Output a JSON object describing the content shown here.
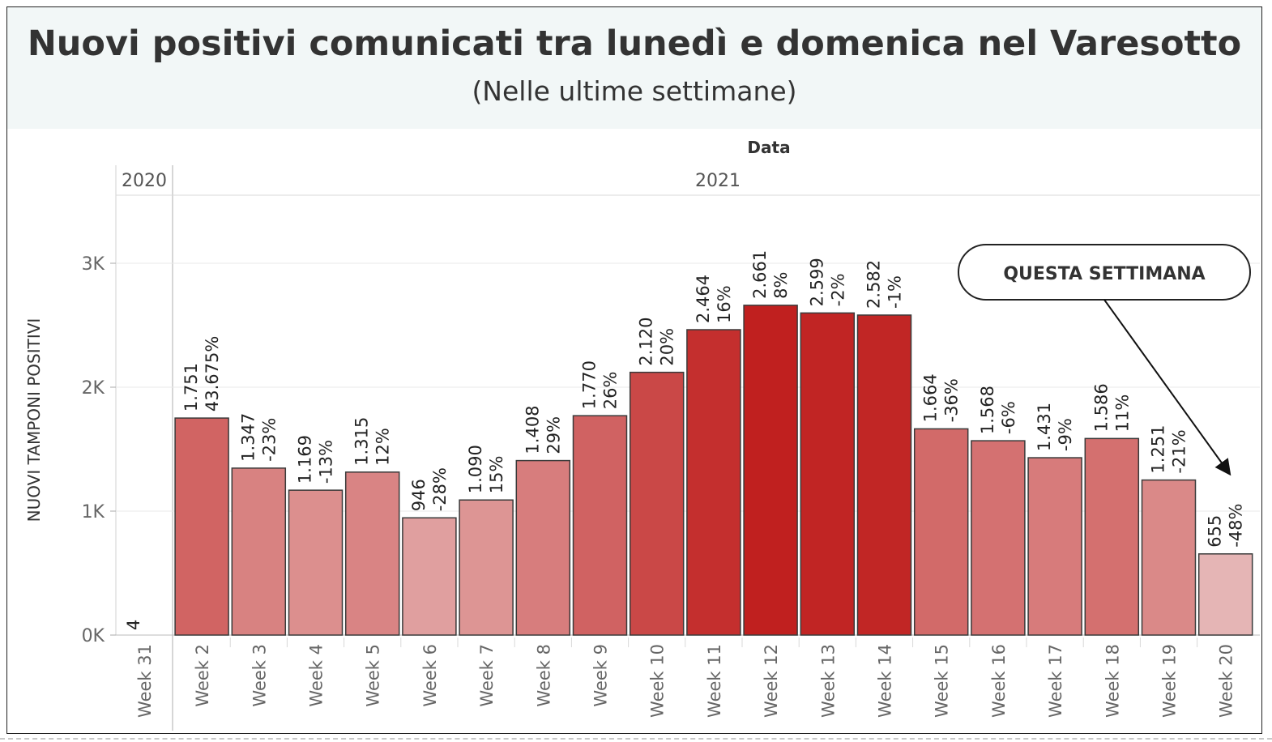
{
  "title": "Nuovi positivi comunicati tra lunedì e domenica nel Varesotto",
  "subtitle": "(Nelle ultime settimane)",
  "chart_data": {
    "type": "bar",
    "title": "Nuovi positivi comunicati tra lunedì e domenica nel Varesotto",
    "subtitle": "(Nelle ultime settimane)",
    "xlabel": "Data",
    "ylabel": "NUOVI TAMPONI POSITIVI",
    "ylim": [
      0,
      3500
    ],
    "yticks": [
      0,
      1000,
      2000,
      3000
    ],
    "ytick_labels": [
      "0K",
      "1K",
      "2K",
      "3K"
    ],
    "year_groups": [
      {
        "label": "2020",
        "categories": [
          "Week 31"
        ]
      },
      {
        "label": "2021",
        "categories": [
          "Week 2",
          "Week 3",
          "Week 4",
          "Week 5",
          "Week 6",
          "Week 7",
          "Week 8",
          "Week 9",
          "Week 10",
          "Week 11",
          "Week 12",
          "Week 13",
          "Week 14",
          "Week 15",
          "Week 16",
          "Week 17",
          "Week 18",
          "Week 19",
          "Week 20"
        ]
      }
    ],
    "categories": [
      "Week 31",
      "Week 2",
      "Week 3",
      "Week 4",
      "Week 5",
      "Week 6",
      "Week 7",
      "Week 8",
      "Week 9",
      "Week 10",
      "Week 11",
      "Week 12",
      "Week 13",
      "Week 14",
      "Week 15",
      "Week 16",
      "Week 17",
      "Week 18",
      "Week 19",
      "Week 20"
    ],
    "values": [
      4,
      1751,
      1347,
      1169,
      1315,
      946,
      1090,
      1408,
      1770,
      2120,
      2464,
      2661,
      2599,
      2582,
      1664,
      1568,
      1431,
      1586,
      1251,
      655
    ],
    "value_labels": [
      "4",
      "1.751",
      "1.347",
      "1.169",
      "1.315",
      "946",
      "1.090",
      "1.408",
      "1.770",
      "2.120",
      "2.464",
      "2.661",
      "2.599",
      "2.582",
      "1.664",
      "1.568",
      "1.431",
      "1.586",
      "1.251",
      "655"
    ],
    "pct_labels": [
      "",
      "43.675%",
      "-23%",
      "-13%",
      "12%",
      "-28%",
      "15%",
      "29%",
      "26%",
      "20%",
      "16%",
      "8%",
      "-2%",
      "-1%",
      "-36%",
      "-6%",
      "-9%",
      "11%",
      "-21%",
      "-48%"
    ],
    "color_scale": {
      "low": "#e6b9b9",
      "high": "#c0201f"
    },
    "grid": true,
    "annotation": {
      "text": "QUESTA SETTIMANA",
      "target": "Week 20"
    }
  }
}
